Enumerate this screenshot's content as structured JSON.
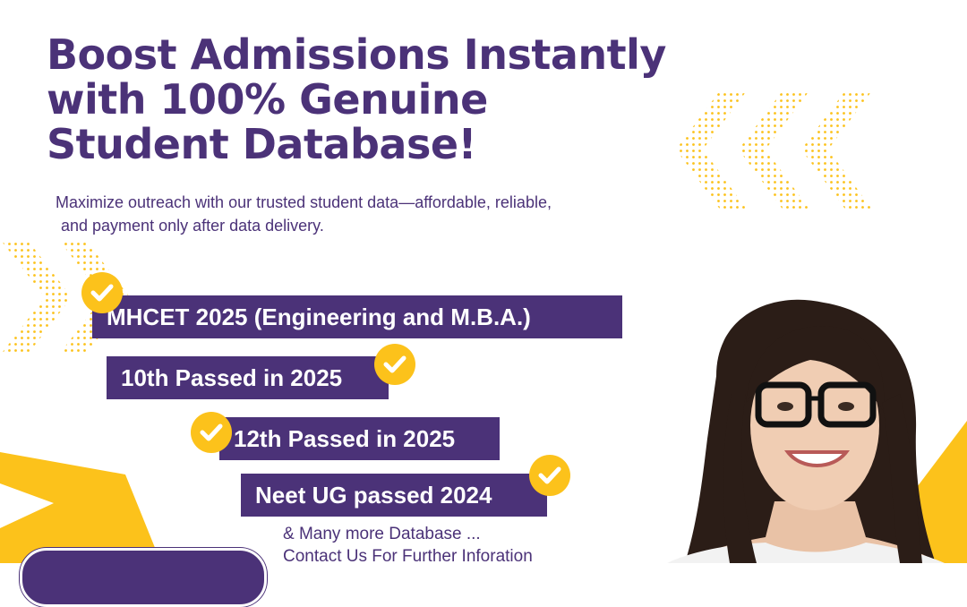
{
  "hero": {
    "headline_lines": [
      "Boost Admissions Instantly",
      "with 100% Genuine",
      "Student Database!"
    ],
    "subtitle_lines": [
      "Maximize outreach with our trusted student data—affordable, reliable,",
      "and payment only after data delivery."
    ]
  },
  "database_tags": [
    "MHCET 2025 (Engineering and M.B.A.)",
    "10th Passed in 2025",
    "12th Passed in 2025",
    "Neet UG passed 2024"
  ],
  "more_info": {
    "line1": "& Many more Database ...",
    "line2": "Contact Us For Further Inforation"
  },
  "icons": {
    "check": "check-circle-icon"
  },
  "colors": {
    "brand_purple": "#4b3278",
    "accent_yellow": "#fcc21b",
    "background": "#ffffff"
  }
}
